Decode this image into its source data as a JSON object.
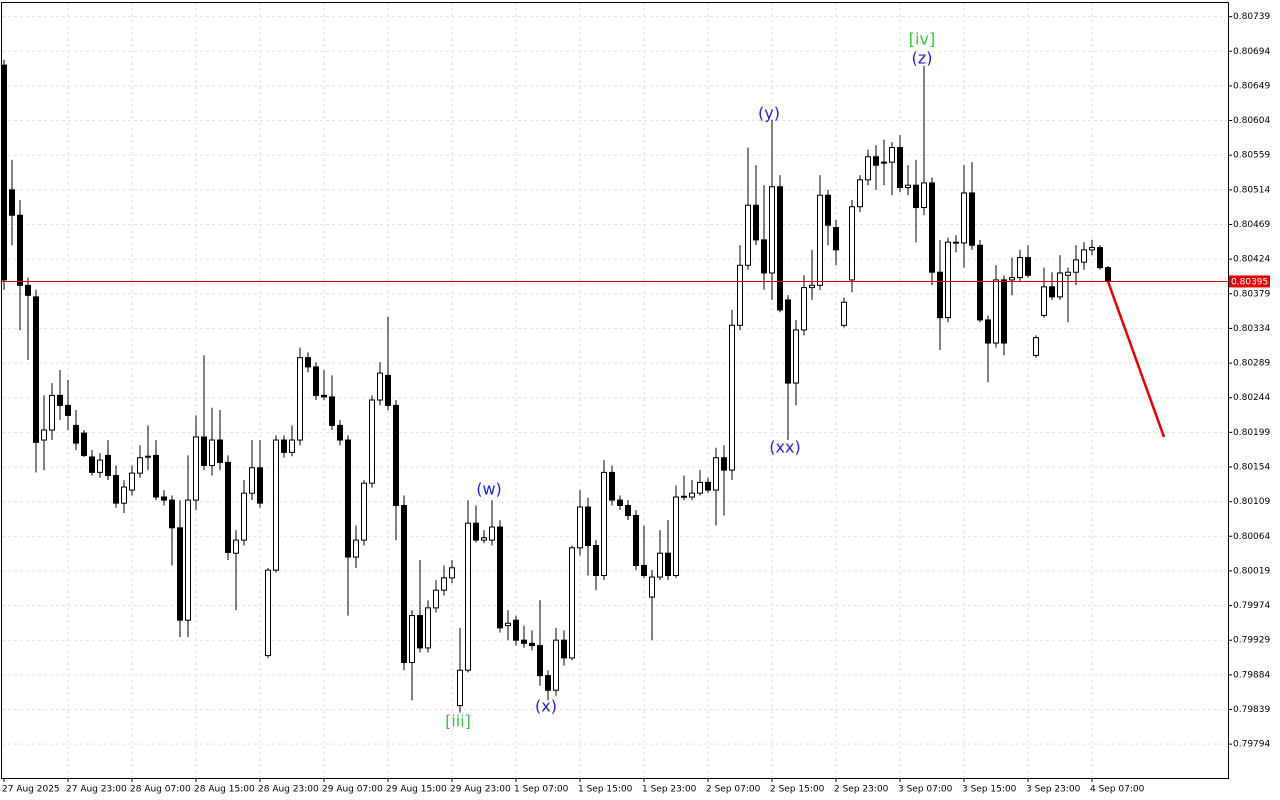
{
  "chart_data": {
    "type": "candlestick",
    "categories": [
      "27 Aug 2025",
      null,
      null,
      null,
      null,
      null,
      null,
      null,
      "27 Aug 23:00",
      null,
      null,
      null,
      null,
      null,
      null,
      null,
      "28 Aug 07:00",
      null,
      null,
      null,
      null,
      null,
      null,
      null,
      "28 Aug 15:00",
      null,
      null,
      null,
      null,
      null,
      null,
      null,
      "28 Aug 23:00",
      null,
      null,
      null,
      null,
      null,
      null,
      null,
      "29 Aug 07:00",
      null,
      null,
      null,
      null,
      null,
      null,
      null,
      "29 Aug 15:00",
      null,
      null,
      null,
      null,
      null,
      null,
      null,
      "29 Aug 23:00",
      null,
      null,
      null,
      null,
      null,
      null,
      null,
      "1 Sep 07:00",
      null,
      null,
      null,
      null,
      null,
      null,
      null,
      "1 Sep 15:00",
      null,
      null,
      null,
      null,
      null,
      null,
      null,
      "1 Sep 23:00",
      null,
      null,
      null,
      null,
      null,
      null,
      null,
      "2 Sep 07:00",
      null,
      null,
      null,
      null,
      null,
      null,
      null,
      "2 Sep 15:00",
      null,
      null,
      null,
      null,
      null,
      null,
      null,
      "2 Sep 23:00",
      null,
      null,
      null,
      null,
      null,
      null,
      null,
      "3 Sep 07:00",
      null,
      null,
      null,
      null,
      null,
      null,
      null,
      "3 Sep 15:00",
      null,
      null,
      null,
      null,
      null,
      null,
      null,
      "3 Sep 23:00",
      null,
      null,
      null,
      null,
      null,
      null,
      null,
      "4 Sep 07:00",
      null,
      null
    ],
    "open": [
      0.80676,
      0.80514,
      0.80481,
      0.8039,
      0.80375,
      0.80189,
      0.80202,
      0.80247,
      0.80234,
      0.80208,
      0.80198,
      0.80167,
      0.80147,
      0.80169,
      0.80143,
      0.80107,
      0.80124,
      0.80146,
      0.80168,
      0.80169,
      0.80115,
      0.80111,
      0.80075,
      0.79955,
      0.80111,
      0.80193,
      0.80156,
      0.80189,
      0.8016,
      0.80042,
      0.80059,
      0.8012,
      0.80153,
      0.79909,
      0.8002,
      0.80189,
      0.80173,
      0.80189,
      0.80296,
      0.80284,
      0.80247,
      0.80245,
      0.80208,
      0.80189,
      0.80037,
      0.80059,
      0.80133,
      0.80241,
      0.80273,
      0.80234,
      0.80104,
      0.799,
      0.79961,
      0.79919,
      0.79971,
      0.79994,
      0.8001,
      0.79844,
      0.7989,
      0.80081,
      0.80059,
      0.80059,
      0.80076,
      0.79948,
      0.79955,
      0.79929,
      0.79925,
      0.79922,
      0.79883,
      0.79864,
      0.79929,
      0.79906,
      0.80049,
      0.80102,
      0.80052,
      0.80013,
      0.80147,
      0.80111,
      0.80104,
      0.80091,
      0.80026,
      0.79985,
      0.80011,
      0.80042,
      0.80013,
      0.80115,
      0.80115,
      0.8012,
      0.80134,
      0.80124,
      0.80166,
      0.8015,
      0.80338,
      0.80416,
      0.80494,
      0.80449,
      0.80406,
      0.80518,
      0.80371,
      0.80263,
      0.80332,
      0.80387,
      0.8039,
      0.80507,
      0.80465,
      0.80338,
      0.80397,
      0.80492,
      0.80527,
      0.80557,
      0.80549,
      0.8055,
      0.80569,
      0.80517,
      0.8052,
      0.80491,
      0.80523,
      0.80407,
      0.80348,
      0.80446,
      0.80445,
      0.8051,
      0.80442,
      0.80345,
      0.80315,
      0.80397,
      0.80397,
      0.804,
      0.80426,
      0.80299,
      0.80351,
      0.80388,
      0.80375,
      0.80403,
      0.80407,
      0.8042,
      0.80436,
      0.80439,
      0.80413
    ],
    "high": [
      0.80683,
      0.80553,
      0.80501,
      0.804,
      0.80384,
      0.80247,
      0.80263,
      0.8028,
      0.80267,
      0.80228,
      0.80202,
      0.80176,
      0.80172,
      0.80189,
      0.80156,
      0.80137,
      0.80156,
      0.80182,
      0.80208,
      0.80189,
      0.80124,
      0.80117,
      0.80111,
      0.80169,
      0.80221,
      0.80299,
      0.80231,
      0.80228,
      0.80169,
      0.80072,
      0.80137,
      0.80189,
      0.80189,
      0.80023,
      0.80195,
      0.80195,
      0.80208,
      0.80309,
      0.80303,
      0.8029,
      0.8028,
      0.80273,
      0.80215,
      0.80195,
      0.80078,
      0.80137,
      0.80247,
      0.8029,
      0.80349,
      0.80241,
      0.80117,
      0.79968,
      0.80033,
      0.79981,
      0.80007,
      0.80026,
      0.80033,
      0.79945,
      0.80111,
      0.80104,
      0.80072,
      0.80111,
      0.80085,
      0.79968,
      0.79961,
      0.79948,
      0.79942,
      0.79981,
      0.7989,
      0.79945,
      0.79942,
      0.80052,
      0.80124,
      0.80114,
      0.80059,
      0.80163,
      0.80156,
      0.80117,
      0.80111,
      0.80098,
      0.80078,
      0.8002,
      0.80072,
      0.80085,
      0.8013,
      0.80143,
      0.80137,
      0.8015,
      0.8014,
      0.80179,
      0.80182,
      0.80358,
      0.80442,
      0.80569,
      0.80546,
      0.8052,
      0.80605,
      0.80533,
      0.80377,
      0.80345,
      0.80403,
      0.80436,
      0.80533,
      0.80514,
      0.80475,
      0.80374,
      0.80501,
      0.80533,
      0.80566,
      0.80572,
      0.80579,
      0.80576,
      0.80585,
      0.80546,
      0.80553,
      0.80675,
      0.8053,
      0.80449,
      0.80452,
      0.80455,
      0.80546,
      0.8055,
      0.80449,
      0.80351,
      0.80416,
      0.80403,
      0.80426,
      0.80436,
      0.80442,
      0.80325,
      0.80413,
      0.80407,
      0.80429,
      0.80413,
      0.80442,
      0.80446,
      0.80449,
      0.80442,
      0.80415
    ],
    "low": [
      0.80384,
      0.80442,
      0.80332,
      0.80293,
      0.80147,
      0.8015,
      0.80189,
      0.80215,
      0.80202,
      0.80176,
      0.80167,
      0.80143,
      0.8014,
      0.80137,
      0.80101,
      0.80094,
      0.80117,
      0.8014,
      0.8015,
      0.80111,
      0.80104,
      0.80026,
      0.79933,
      0.79933,
      0.80098,
      0.8015,
      0.80143,
      0.8015,
      0.80033,
      0.79968,
      0.80052,
      0.80111,
      0.80101,
      0.79906,
      0.80017,
      0.80166,
      0.80168,
      0.80182,
      0.80277,
      0.80241,
      0.80241,
      0.80202,
      0.80182,
      0.79961,
      0.80023,
      0.80052,
      0.80127,
      0.80234,
      0.80228,
      0.80059,
      0.7989,
      0.79851,
      0.79913,
      0.79913,
      0.79965,
      0.79987,
      0.80003,
      0.79835,
      0.79887,
      0.80056,
      0.80055,
      0.80052,
      0.79939,
      0.79929,
      0.79922,
      0.79919,
      0.79916,
      0.7987,
      0.79851,
      0.79857,
      0.79896,
      0.79903,
      0.80039,
      0.80013,
      0.79994,
      0.80007,
      0.80104,
      0.80098,
      0.80085,
      0.8002,
      0.8001,
      0.79929,
      0.80007,
      0.80007,
      0.8001,
      0.80111,
      0.80111,
      0.80117,
      0.8012,
      0.80078,
      0.80091,
      0.80137,
      0.80332,
      0.8041,
      0.80442,
      0.80384,
      0.80371,
      0.80355,
      0.80189,
      0.80234,
      0.80325,
      0.80371,
      0.80384,
      0.80442,
      0.80416,
      0.80335,
      0.80381,
      0.80485,
      0.8052,
      0.80514,
      0.8052,
      0.80507,
      0.80511,
      0.80507,
      0.80446,
      0.80481,
      0.8039,
      0.80306,
      0.80342,
      0.80433,
      0.80413,
      0.80436,
      0.80342,
      0.80264,
      0.80309,
      0.80299,
      0.80377,
      0.80394,
      0.804,
      0.80296,
      0.80348,
      0.80371,
      0.80371,
      0.80342,
      0.8039,
      0.8041,
      0.80429,
      0.8041,
      0.80392
    ],
    "close": [
      0.80397,
      0.80481,
      0.8039,
      0.80377,
      0.80186,
      0.80202,
      0.80247,
      0.80234,
      0.80221,
      0.80185,
      0.80169,
      0.80147,
      0.80163,
      0.80143,
      0.80107,
      0.80128,
      0.80146,
      0.80166,
      0.80167,
      0.80115,
      0.80111,
      0.80075,
      0.79955,
      0.80111,
      0.80193,
      0.80156,
      0.80189,
      0.8016,
      0.80043,
      0.80059,
      0.8012,
      0.80153,
      0.80107,
      0.8002,
      0.80189,
      0.80173,
      0.80189,
      0.80296,
      0.80284,
      0.80247,
      0.80245,
      0.80208,
      0.80189,
      0.80037,
      0.80059,
      0.80133,
      0.80241,
      0.80276,
      0.80234,
      0.80104,
      0.799,
      0.79961,
      0.79919,
      0.79971,
      0.79994,
      0.8001,
      0.80023,
      0.7989,
      0.80081,
      0.80059,
      0.80062,
      0.80076,
      0.79945,
      0.79951,
      0.79929,
      0.79925,
      0.79922,
      0.79883,
      0.79864,
      0.79929,
      0.79906,
      0.80049,
      0.80102,
      0.80052,
      0.80013,
      0.80147,
      0.80111,
      0.80104,
      0.80091,
      0.80026,
      0.80013,
      0.80011,
      0.80042,
      0.80013,
      0.80115,
      0.80116,
      0.8012,
      0.80134,
      0.80124,
      0.80166,
      0.8015,
      0.80338,
      0.80416,
      0.80494,
      0.80449,
      0.80406,
      0.80518,
      0.80358,
      0.80263,
      0.80332,
      0.80387,
      0.8039,
      0.80507,
      0.80468,
      0.80436,
      0.80368,
      0.80492,
      0.80527,
      0.80557,
      0.80546,
      0.8055,
      0.80569,
      0.80517,
      0.8052,
      0.80491,
      0.80523,
      0.80407,
      0.80348,
      0.80446,
      0.80445,
      0.8051,
      0.80442,
      0.80345,
      0.80315,
      0.80397,
      0.80315,
      0.804,
      0.80426,
      0.80403,
      0.80322,
      0.80388,
      0.80375,
      0.80406,
      0.80407,
      0.80423,
      0.80436,
      0.80439,
      0.80413,
      0.80395
    ],
    "up_color": "#ffffff",
    "down_color": "#000000",
    "ylim": [
      0.7975,
      0.80758
    ],
    "yticks": [
      0.80739,
      0.80694,
      0.80649,
      0.80604,
      0.80559,
      0.80514,
      0.80469,
      0.80424,
      0.80379,
      0.80334,
      0.80289,
      0.80244,
      0.80199,
      0.80154,
      0.80109,
      0.80064,
      0.80019,
      0.79974,
      0.79929,
      0.79884,
      0.79839,
      0.79794
    ],
    "grid": true,
    "current_price": 0.80395,
    "current_price_color": "#e00000",
    "forecast": {
      "color": "#e00000",
      "value": 0.80193
    },
    "annotations": [
      {
        "text": "[iv]",
        "color": "#40c040"
      },
      {
        "text": "(z)",
        "color": "#2323d0"
      },
      {
        "text": "(y)",
        "color": "#2323d0"
      },
      {
        "text": "(xx)",
        "color": "#2323d0"
      },
      {
        "text": "(w)",
        "color": "#2323d0"
      },
      {
        "text": "(x)",
        "color": "#2323d0"
      },
      {
        "text": "[iii]",
        "color": "#40c040"
      }
    ]
  }
}
